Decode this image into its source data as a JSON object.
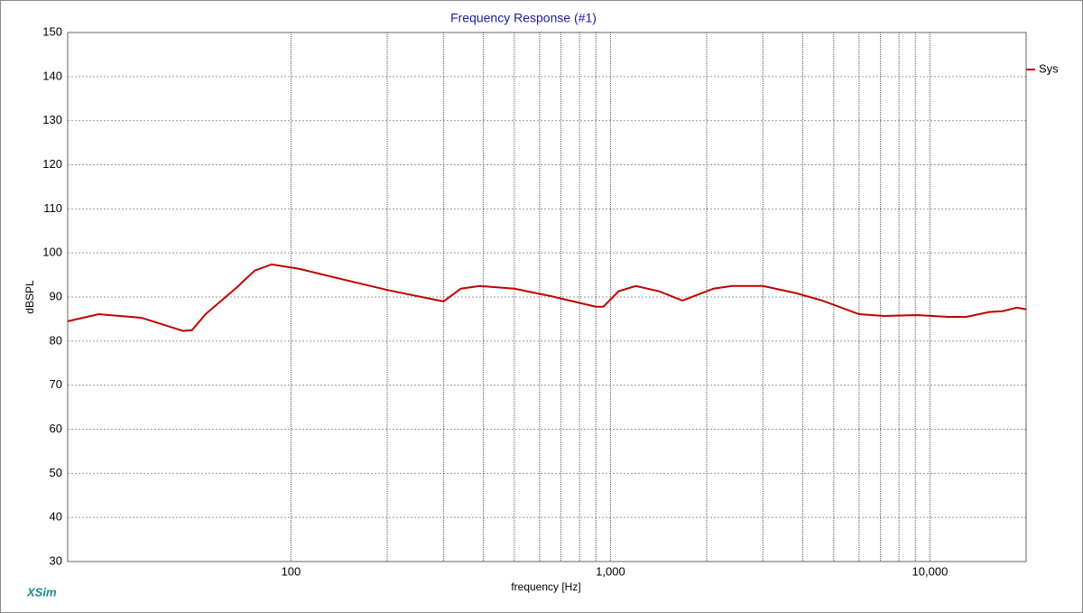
{
  "chart_data": {
    "type": "line",
    "title": "Frequency Response (#1)",
    "x_label": "frequency [Hz]",
    "y_label": "dBSPL",
    "watermark": "XSim",
    "xscale": "log",
    "grid": true,
    "legend": "right",
    "xlim": [
      20,
      20000
    ],
    "ylim": [
      30,
      150
    ],
    "xticks": [
      100,
      {
        "value": 1000,
        "label": "1,000"
      },
      {
        "value": 10000,
        "label": "10,000"
      }
    ],
    "xgrid": [
      200,
      300,
      400,
      500,
      600,
      700,
      800,
      900,
      2000,
      3000,
      4000,
      5000,
      6000,
      7000,
      8000,
      9000
    ],
    "yticks": [
      30,
      40,
      50,
      60,
      70,
      80,
      90,
      100,
      110,
      120,
      130,
      140,
      150
    ],
    "x": [
      20,
      25,
      34,
      46,
      49,
      54,
      67,
      77,
      87,
      106,
      147,
      203,
      300,
      340,
      390,
      500,
      650,
      900,
      950,
      1060,
      1200,
      1420,
      1680,
      2100,
      2400,
      3000,
      3800,
      4600,
      6000,
      7200,
      9100,
      11400,
      13000,
      15300,
      16900,
      18700,
      20000
    ],
    "series": [
      {
        "name": "Sys",
        "color": "#c00000",
        "values": [
          84.5,
          86.1,
          85.3,
          82.3,
          82.5,
          86.1,
          91.9,
          96,
          97.4,
          96.4,
          93.9,
          91.5,
          89,
          91.9,
          92.5,
          91.9,
          90.2,
          87.8,
          87.8,
          91.3,
          92.5,
          91.3,
          89.2,
          91.9,
          92.5,
          92.5,
          90.9,
          89.2,
          86.1,
          85.7,
          85.9,
          85.5,
          85.5,
          86.6,
          86.8,
          87.6,
          87.2
        ]
      }
    ]
  }
}
